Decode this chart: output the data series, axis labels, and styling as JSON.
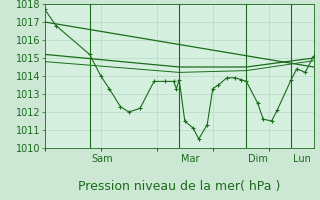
{
  "background_color": "#cce8d4",
  "plot_bg_color": "#d6f0e0",
  "grid_color": "#b8d8c8",
  "line_color": "#1a6b1a",
  "ylim": [
    1010,
    1018
  ],
  "yticks": [
    1010,
    1011,
    1012,
    1013,
    1014,
    1015,
    1016,
    1017,
    1018
  ],
  "xlabel": "Pression niveau de la mer( hPa )",
  "xlabel_fontsize": 9,
  "tick_fontsize": 7,
  "xlim": [
    0,
    96
  ],
  "vlines_x": [
    16,
    48,
    72,
    88
  ],
  "vlines_labels": [
    "Sam",
    "Mar",
    "Dim",
    "Lun"
  ],
  "series_main": [
    [
      0,
      1017.7
    ],
    [
      4,
      1016.8
    ],
    [
      16,
      1015.2
    ],
    [
      20,
      1014.0
    ],
    [
      23,
      1013.3
    ],
    [
      27,
      1012.3
    ],
    [
      30,
      1012.0
    ],
    [
      34,
      1012.2
    ],
    [
      39,
      1013.7
    ],
    [
      43,
      1013.7
    ],
    [
      46,
      1013.7
    ],
    [
      47,
      1013.3
    ],
    [
      48,
      1013.8
    ],
    [
      50,
      1011.5
    ],
    [
      53,
      1011.1
    ],
    [
      55,
      1010.5
    ],
    [
      58,
      1011.3
    ],
    [
      60,
      1013.3
    ],
    [
      62,
      1013.5
    ],
    [
      65,
      1013.9
    ],
    [
      68,
      1013.9
    ],
    [
      70,
      1013.8
    ],
    [
      72,
      1013.7
    ],
    [
      76,
      1012.5
    ],
    [
      78,
      1011.6
    ],
    [
      81,
      1011.5
    ],
    [
      83,
      1012.1
    ],
    [
      88,
      1013.8
    ],
    [
      90,
      1014.4
    ],
    [
      93,
      1014.2
    ],
    [
      96,
      1015.1
    ]
  ],
  "series_smooth1": [
    [
      0,
      1017.0
    ],
    [
      96,
      1014.5
    ]
  ],
  "series_smooth2": [
    [
      0,
      1015.2
    ],
    [
      48,
      1014.5
    ],
    [
      72,
      1014.5
    ],
    [
      96,
      1015.0
    ]
  ],
  "series_smooth3": [
    [
      0,
      1014.8
    ],
    [
      48,
      1014.2
    ],
    [
      72,
      1014.3
    ],
    [
      96,
      1014.85
    ]
  ]
}
